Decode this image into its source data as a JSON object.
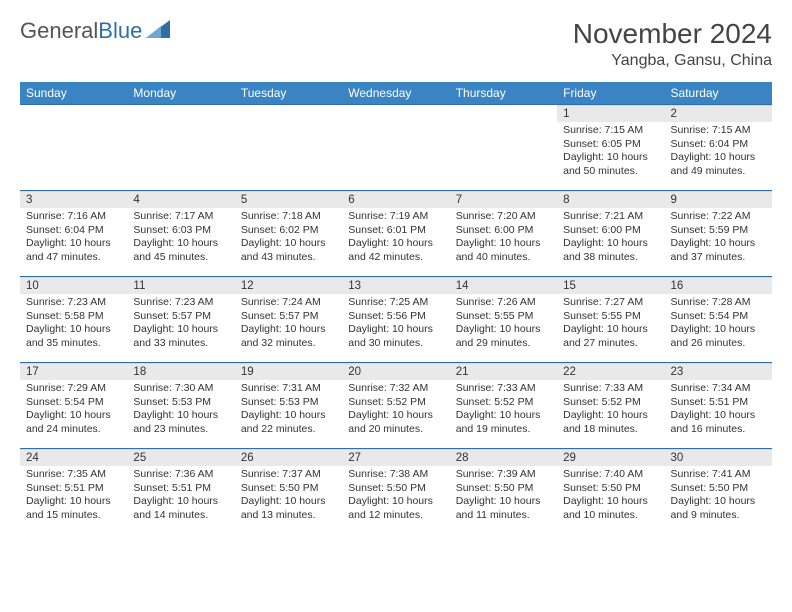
{
  "brand": {
    "part1": "General",
    "part2": "Blue"
  },
  "header": {
    "month_title": "November 2024",
    "location": "Yangba, Gansu, China"
  },
  "colors": {
    "header_bg": "#3b84c4",
    "header_text": "#ffffff",
    "row_rule": "#2f6fa8",
    "daynum_bg": "#e9e9e9",
    "body_text": "#333333",
    "logo_blue": "#2f6fa8",
    "logo_gray": "#555555"
  },
  "weekdays": [
    "Sunday",
    "Monday",
    "Tuesday",
    "Wednesday",
    "Thursday",
    "Friday",
    "Saturday"
  ],
  "weeks": [
    [
      null,
      null,
      null,
      null,
      null,
      {
        "n": "1",
        "sunrise": "7:15 AM",
        "sunset": "6:05 PM",
        "day_h": 10,
        "day_m": 50
      },
      {
        "n": "2",
        "sunrise": "7:15 AM",
        "sunset": "6:04 PM",
        "day_h": 10,
        "day_m": 49
      }
    ],
    [
      {
        "n": "3",
        "sunrise": "7:16 AM",
        "sunset": "6:04 PM",
        "day_h": 10,
        "day_m": 47
      },
      {
        "n": "4",
        "sunrise": "7:17 AM",
        "sunset": "6:03 PM",
        "day_h": 10,
        "day_m": 45
      },
      {
        "n": "5",
        "sunrise": "7:18 AM",
        "sunset": "6:02 PM",
        "day_h": 10,
        "day_m": 43
      },
      {
        "n": "6",
        "sunrise": "7:19 AM",
        "sunset": "6:01 PM",
        "day_h": 10,
        "day_m": 42
      },
      {
        "n": "7",
        "sunrise": "7:20 AM",
        "sunset": "6:00 PM",
        "day_h": 10,
        "day_m": 40
      },
      {
        "n": "8",
        "sunrise": "7:21 AM",
        "sunset": "6:00 PM",
        "day_h": 10,
        "day_m": 38
      },
      {
        "n": "9",
        "sunrise": "7:22 AM",
        "sunset": "5:59 PM",
        "day_h": 10,
        "day_m": 37
      }
    ],
    [
      {
        "n": "10",
        "sunrise": "7:23 AM",
        "sunset": "5:58 PM",
        "day_h": 10,
        "day_m": 35
      },
      {
        "n": "11",
        "sunrise": "7:23 AM",
        "sunset": "5:57 PM",
        "day_h": 10,
        "day_m": 33
      },
      {
        "n": "12",
        "sunrise": "7:24 AM",
        "sunset": "5:57 PM",
        "day_h": 10,
        "day_m": 32
      },
      {
        "n": "13",
        "sunrise": "7:25 AM",
        "sunset": "5:56 PM",
        "day_h": 10,
        "day_m": 30
      },
      {
        "n": "14",
        "sunrise": "7:26 AM",
        "sunset": "5:55 PM",
        "day_h": 10,
        "day_m": 29
      },
      {
        "n": "15",
        "sunrise": "7:27 AM",
        "sunset": "5:55 PM",
        "day_h": 10,
        "day_m": 27
      },
      {
        "n": "16",
        "sunrise": "7:28 AM",
        "sunset": "5:54 PM",
        "day_h": 10,
        "day_m": 26
      }
    ],
    [
      {
        "n": "17",
        "sunrise": "7:29 AM",
        "sunset": "5:54 PM",
        "day_h": 10,
        "day_m": 24
      },
      {
        "n": "18",
        "sunrise": "7:30 AM",
        "sunset": "5:53 PM",
        "day_h": 10,
        "day_m": 23
      },
      {
        "n": "19",
        "sunrise": "7:31 AM",
        "sunset": "5:53 PM",
        "day_h": 10,
        "day_m": 22
      },
      {
        "n": "20",
        "sunrise": "7:32 AM",
        "sunset": "5:52 PM",
        "day_h": 10,
        "day_m": 20
      },
      {
        "n": "21",
        "sunrise": "7:33 AM",
        "sunset": "5:52 PM",
        "day_h": 10,
        "day_m": 19
      },
      {
        "n": "22",
        "sunrise": "7:33 AM",
        "sunset": "5:52 PM",
        "day_h": 10,
        "day_m": 18
      },
      {
        "n": "23",
        "sunrise": "7:34 AM",
        "sunset": "5:51 PM",
        "day_h": 10,
        "day_m": 16
      }
    ],
    [
      {
        "n": "24",
        "sunrise": "7:35 AM",
        "sunset": "5:51 PM",
        "day_h": 10,
        "day_m": 15
      },
      {
        "n": "25",
        "sunrise": "7:36 AM",
        "sunset": "5:51 PM",
        "day_h": 10,
        "day_m": 14
      },
      {
        "n": "26",
        "sunrise": "7:37 AM",
        "sunset": "5:50 PM",
        "day_h": 10,
        "day_m": 13
      },
      {
        "n": "27",
        "sunrise": "7:38 AM",
        "sunset": "5:50 PM",
        "day_h": 10,
        "day_m": 12
      },
      {
        "n": "28",
        "sunrise": "7:39 AM",
        "sunset": "5:50 PM",
        "day_h": 10,
        "day_m": 11
      },
      {
        "n": "29",
        "sunrise": "7:40 AM",
        "sunset": "5:50 PM",
        "day_h": 10,
        "day_m": 10
      },
      {
        "n": "30",
        "sunrise": "7:41 AM",
        "sunset": "5:50 PM",
        "day_h": 10,
        "day_m": 9
      }
    ]
  ],
  "labels": {
    "sunrise_prefix": "Sunrise: ",
    "sunset_prefix": "Sunset: ",
    "daylight_prefix": "Daylight: ",
    "hours_word": " hours",
    "and_word": "and ",
    "minutes_suffix": " minutes."
  }
}
